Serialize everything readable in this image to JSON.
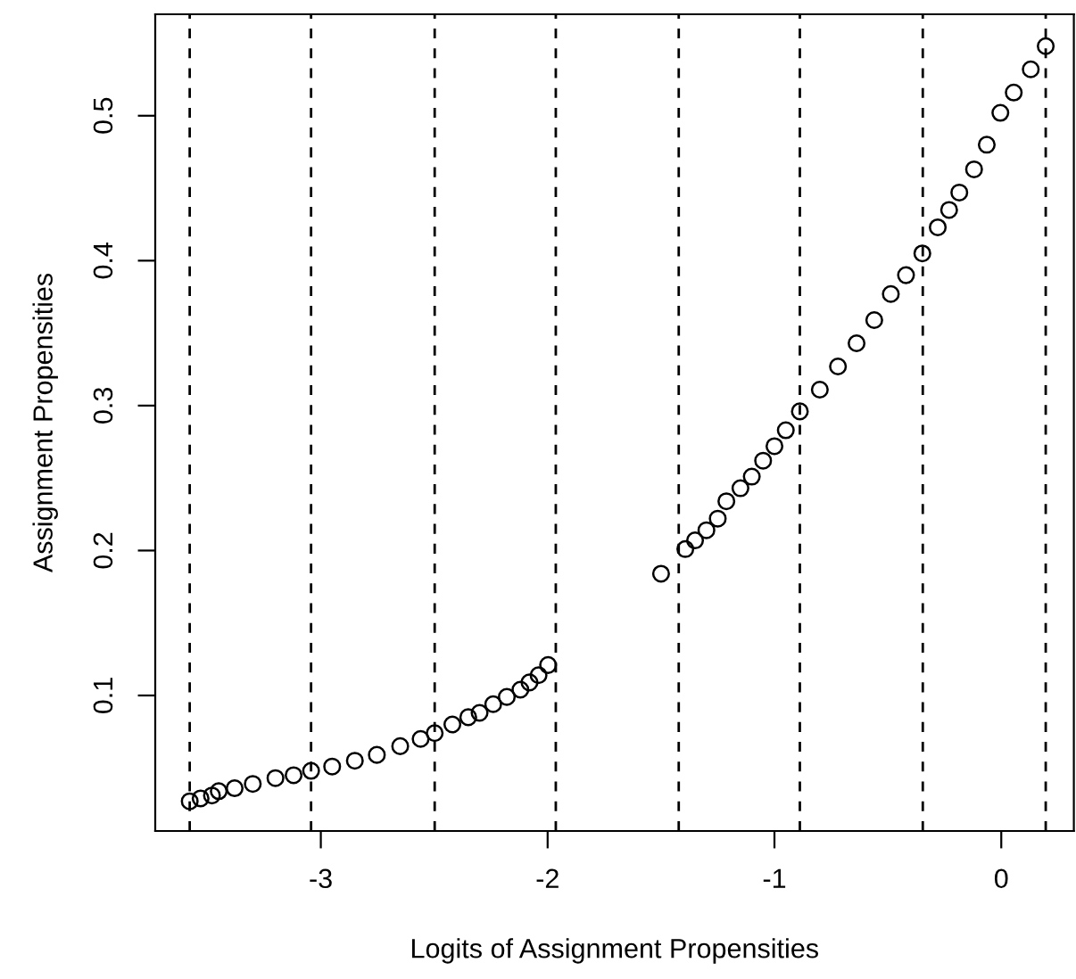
{
  "chart_data": {
    "type": "scatter",
    "xlabel": "Logits of Assignment Propensities",
    "ylabel": "Assignment Propensities",
    "xlim": [
      -3.73,
      0.32
    ],
    "ylim": [
      0.0065,
      0.57
    ],
    "xticks": [
      -3,
      -2,
      -1,
      0
    ],
    "yticks": [
      0.1,
      0.2,
      0.3,
      0.4,
      0.5
    ],
    "marker": "circle",
    "grid": false,
    "series": [
      {
        "color": "#000000",
        "x": [
          -3.578,
          -3.53,
          -3.48,
          -3.45,
          -3.38,
          -3.3,
          -3.2,
          -3.12,
          -3.043,
          -2.95,
          -2.85,
          -2.753,
          -2.65,
          -2.56,
          -2.498,
          -2.42,
          -2.35,
          -2.3,
          -2.24,
          -2.18,
          -2.12,
          -2.08,
          -2.04,
          -1.998
        ],
        "values": [
          0.027,
          0.029,
          0.031,
          0.034,
          0.036,
          0.039,
          0.043,
          0.045,
          0.048,
          0.051,
          0.055,
          0.059,
          0.065,
          0.07,
          0.074,
          0.08,
          0.085,
          0.088,
          0.094,
          0.099,
          0.104,
          0.109,
          0.114,
          0.121
        ]
      },
      {
        "color": "#000000",
        "x": [
          -1.5,
          -1.393,
          -1.35,
          -1.3,
          -1.25,
          -1.212,
          -1.15,
          -1.1,
          -1.05,
          -1.0,
          -0.95,
          -0.888,
          -0.8,
          -0.72,
          -0.638,
          -0.56,
          -0.487,
          -0.42,
          -0.348,
          -0.28,
          -0.23,
          -0.185,
          -0.12,
          -0.064,
          -0.004,
          0.055,
          0.13,
          0.196
        ],
        "values": [
          0.184,
          0.201,
          0.207,
          0.214,
          0.222,
          0.234,
          0.243,
          0.251,
          0.262,
          0.272,
          0.283,
          0.296,
          0.311,
          0.327,
          0.343,
          0.359,
          0.377,
          0.39,
          0.405,
          0.423,
          0.435,
          0.447,
          0.463,
          0.48,
          0.502,
          0.516,
          0.532,
          0.548
        ]
      }
    ],
    "ref_lines": [
      {
        "axis": "x",
        "value": -3.578,
        "line_style": "dashed"
      },
      {
        "axis": "x",
        "value": -3.043,
        "line_style": "dashed"
      },
      {
        "axis": "x",
        "value": -2.498,
        "line_style": "dashed"
      },
      {
        "axis": "x",
        "value": -1.964,
        "line_style": "dashed"
      },
      {
        "axis": "x",
        "value": -1.422,
        "line_style": "dashed"
      },
      {
        "axis": "x",
        "value": -0.888,
        "line_style": "dashed"
      },
      {
        "axis": "x",
        "value": -0.346,
        "line_style": "dashed"
      },
      {
        "axis": "x",
        "value": 0.196,
        "line_style": "dashed"
      }
    ]
  }
}
